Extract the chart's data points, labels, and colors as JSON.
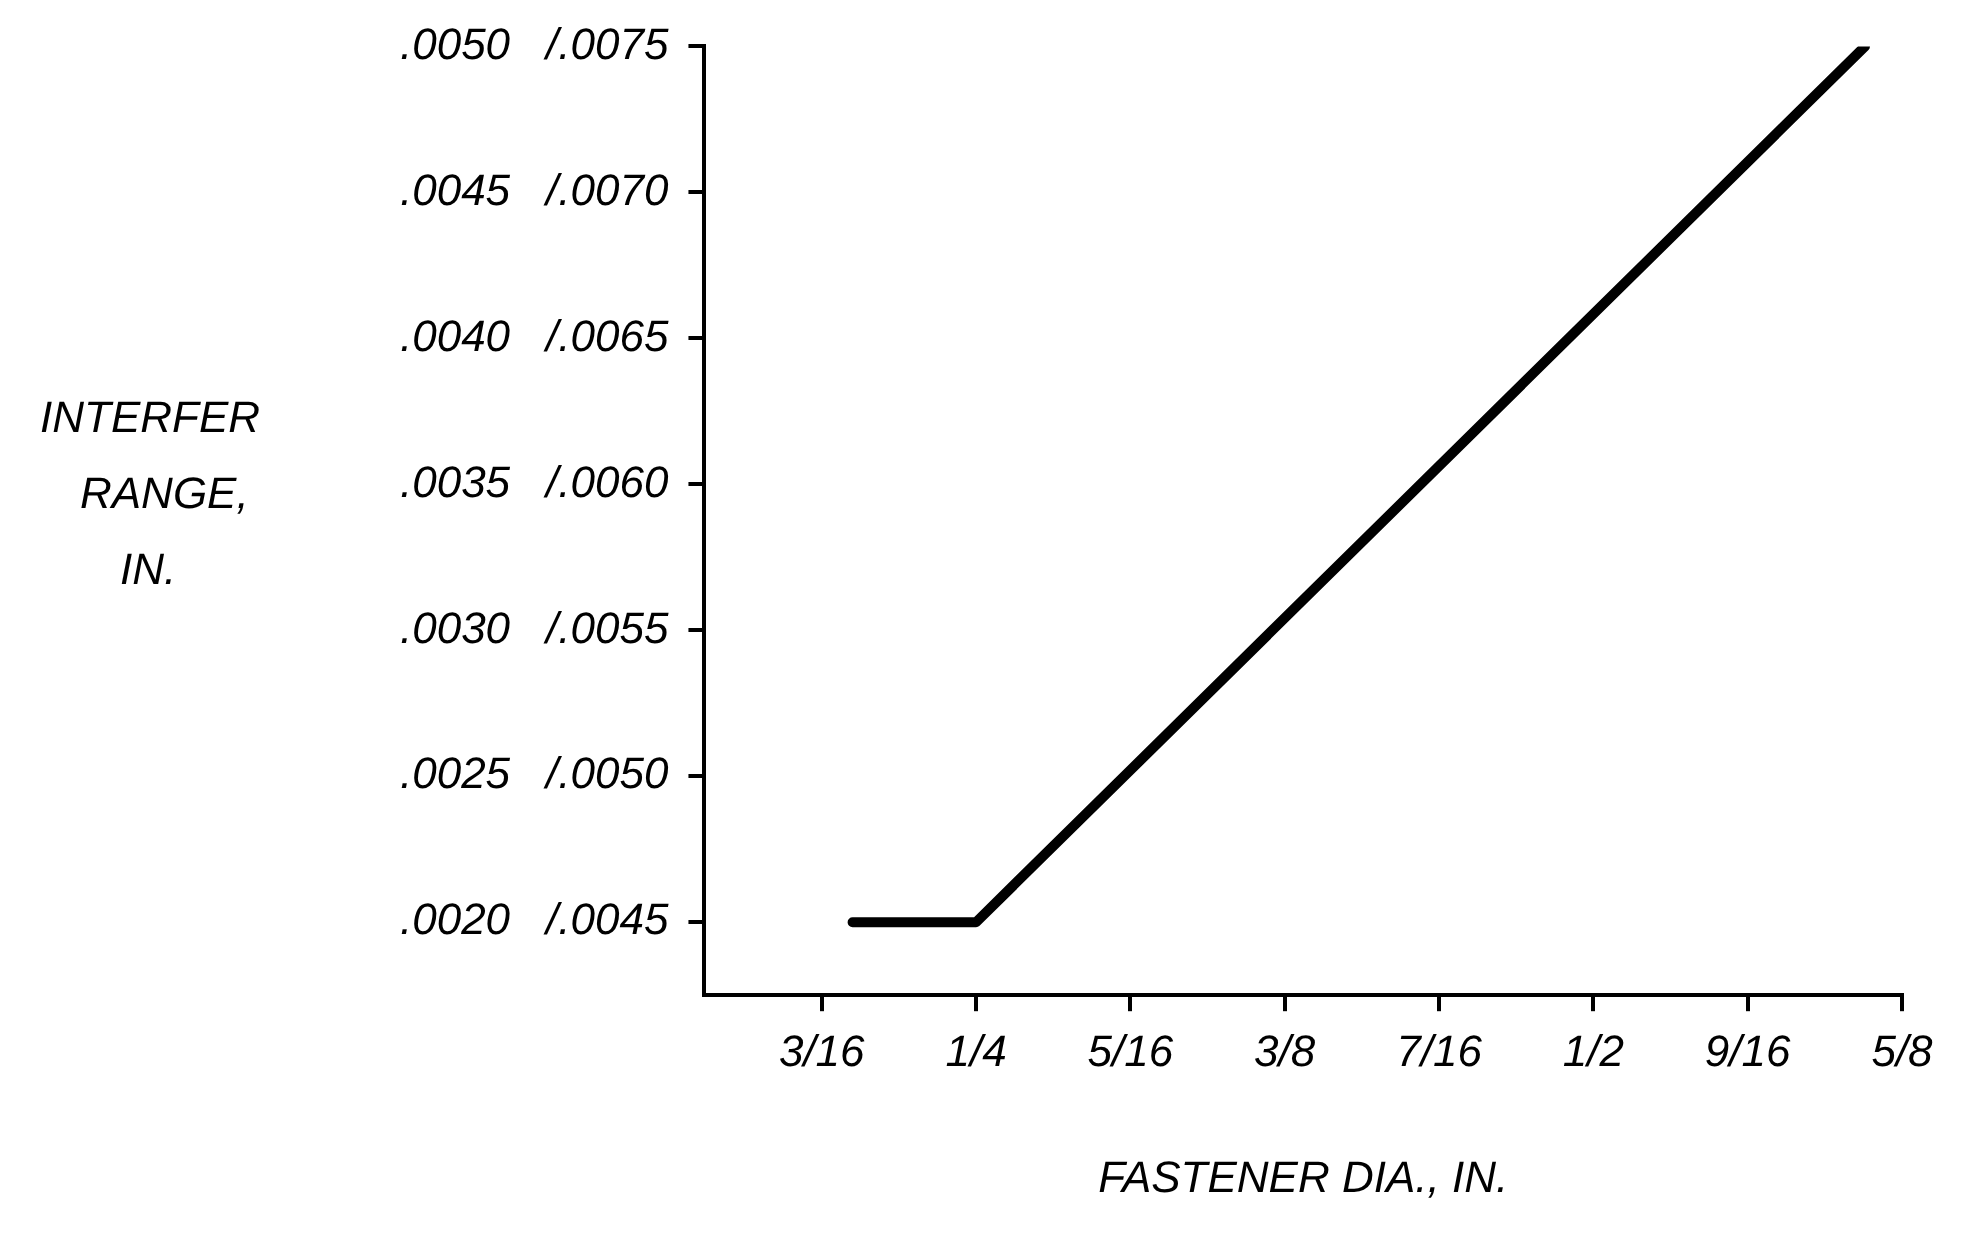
{
  "chart_data": {
    "type": "line",
    "xlabel": "FASTENER DIA., IN.",
    "ylabel": "INTERFER RANGE, IN.",
    "x": [
      0.2,
      0.25,
      0.61
    ],
    "series": [
      {
        "color": "#000000",
        "values": [
          0.002,
          0.002,
          0.005
        ]
      }
    ],
    "xlim": [
      0.14,
      0.625
    ],
    "xticks": [
      {
        "value": 0.1875,
        "label": "3/16"
      },
      {
        "value": 0.25,
        "label": "1/4"
      },
      {
        "value": 0.3125,
        "label": "5/16"
      },
      {
        "value": 0.375,
        "label": "3/8"
      },
      {
        "value": 0.4375,
        "label": "7/16"
      },
      {
        "value": 0.5,
        "label": "1/2"
      },
      {
        "value": 0.5625,
        "label": "9/16"
      },
      {
        "value": 0.625,
        "label": "5/8"
      }
    ],
    "ylim": [
      0.00175,
      0.005
    ],
    "yticks": [
      {
        "value": 0.002,
        "label": ".0020"
      },
      {
        "value": 0.0025,
        "label": ".0025"
      },
      {
        "value": 0.003,
        "label": ".0030"
      },
      {
        "value": 0.0035,
        "label": ".0035"
      },
      {
        "value": 0.004,
        "label": ".0040"
      },
      {
        "value": 0.0045,
        "label": ".0045"
      },
      {
        "value": 0.005,
        "label": ".0050"
      }
    ],
    "y2lim": [
      0.00425,
      0.0075
    ],
    "y2ticks": [
      {
        "value": 0.0045,
        "label": "/.0045"
      },
      {
        "value": 0.005,
        "label": "/.0050"
      },
      {
        "value": 0.0055,
        "label": "/.0055"
      },
      {
        "value": 0.006,
        "label": "/.0060"
      },
      {
        "value": 0.0065,
        "label": "/.0065"
      },
      {
        "value": 0.007,
        "label": "/.0070"
      },
      {
        "value": 0.0075,
        "label": "/.0075"
      }
    ],
    "grid": false,
    "legend": false,
    "marker": "none",
    "line_style": "solid"
  }
}
